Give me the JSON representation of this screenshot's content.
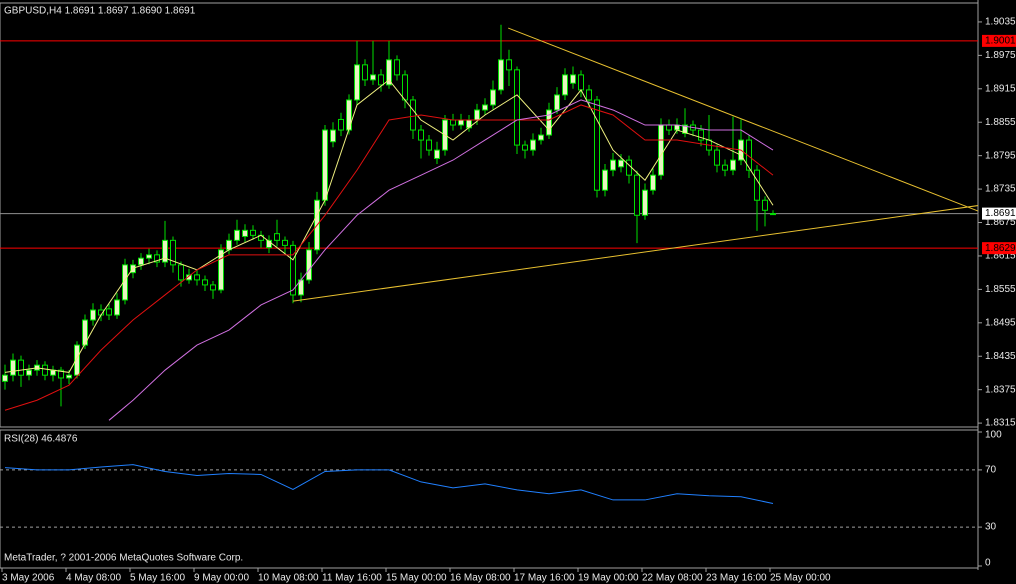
{
  "chart_data": {
    "type": "candlestick",
    "title": "GBPUSD,H4  1.8691 1.8697 1.8690 1.8691",
    "footer": "MetaTrader, ? 2001-2006 MetaQuotes Software Corp.",
    "categories": [
      "3 May 2006",
      null,
      null,
      null,
      null,
      null,
      null,
      null,
      "4 May 08:00",
      null,
      null,
      null,
      null,
      null,
      null,
      null,
      "5 May 16:00",
      null,
      null,
      null,
      null,
      null,
      null,
      null,
      "9 May 00:00",
      null,
      null,
      null,
      null,
      null,
      null,
      null,
      "10 May 08:00",
      null,
      null,
      null,
      null,
      null,
      null,
      null,
      "11 May 16:00",
      null,
      null,
      null,
      null,
      null,
      null,
      null,
      "15 May 00:00",
      null,
      null,
      null,
      null,
      null,
      null,
      null,
      "16 May 08:00",
      null,
      null,
      null,
      null,
      null,
      null,
      null,
      "17 May 16:00",
      null,
      null,
      null,
      null,
      null,
      null,
      null,
      "19 May 00:00",
      null,
      null,
      null,
      null,
      null,
      null,
      null,
      "22 May 08:00",
      null,
      null,
      null,
      null,
      null,
      null,
      null,
      "23 May 16:00",
      null,
      null,
      null,
      null,
      null,
      null,
      null,
      "25 May 00:00"
    ],
    "open": [
      1.839,
      1.8401,
      1.8428,
      1.8401,
      1.841,
      1.8419,
      1.8401,
      1.841,
      1.8396,
      1.8401,
      1.8455,
      1.85,
      1.8518,
      1.852,
      1.8509,
      1.8536,
      1.8585,
      1.8599,
      1.8611,
      1.8617,
      1.8604,
      1.8643,
      1.8599,
      1.8572,
      1.8581,
      1.8572,
      1.8563,
      1.8554,
      1.8626,
      1.8643,
      1.865,
      1.8661,
      1.8652,
      1.863,
      1.8655,
      1.8643,
      1.8634,
      1.8545,
      1.8572,
      1.8626,
      1.8715,
      1.882,
      1.886,
      1.8841,
      1.8895,
      1.8958,
      1.8931,
      1.894,
      1.8922,
      1.8967,
      1.894,
      1.8895,
      1.8841,
      1.8823,
      1.879,
      1.8805,
      1.8859,
      1.885,
      1.8845,
      1.8859,
      1.8877,
      1.8886,
      1.8913,
      1.8967,
      1.8949,
      1.8814,
      1.8805,
      1.8823,
      1.8832,
      1.8877,
      1.8904,
      1.8925,
      1.894,
      1.8913,
      1.8895,
      1.8733,
      1.8769,
      1.8775,
      1.8787,
      1.876,
      1.8688,
      1.8733,
      1.876,
      1.885,
      1.8841,
      1.8835,
      1.885,
      1.8841,
      1.8823,
      1.8805,
      1.8778,
      1.8769,
      1.8787,
      1.8823,
      1.8769,
      1.8715,
      1.8691
    ],
    "high": [
      1.842,
      1.844,
      1.8436,
      1.842,
      1.8428,
      1.8426,
      1.8418,
      1.8416,
      1.841,
      1.8462,
      1.851,
      1.853,
      1.8528,
      1.853,
      1.8548,
      1.861,
      1.8608,
      1.862,
      1.8628,
      1.8625,
      1.8678,
      1.865,
      1.8605,
      1.8592,
      1.859,
      1.858,
      1.857,
      1.8636,
      1.8655,
      1.868,
      1.8672,
      1.867,
      1.866,
      1.8652,
      1.868,
      1.865,
      1.8642,
      1.8585,
      1.864,
      1.873,
      1.885,
      1.8855,
      1.8872,
      1.8905,
      1.9001,
      1.8968,
      1.9001,
      1.895,
      1.9001,
      1.8975,
      1.8948,
      1.8902,
      1.885,
      1.8832,
      1.882,
      1.8868,
      1.887,
      1.887,
      1.8868,
      1.8888,
      1.8898,
      1.893,
      1.903,
      1.8985,
      1.8955,
      1.8822,
      1.8835,
      1.8845,
      1.889,
      1.8918,
      1.8952,
      1.8955,
      1.8948,
      1.8922,
      1.8902,
      1.878,
      1.88,
      1.8798,
      1.8795,
      1.8768,
      1.8745,
      1.8772,
      1.8862,
      1.886,
      1.8862,
      1.888,
      1.8858,
      1.885,
      1.8868,
      1.8815,
      1.8788,
      1.8865,
      1.886,
      1.8832,
      1.8778,
      1.8722,
      1.8697
    ],
    "low": [
      1.8375,
      1.839,
      1.838,
      1.8392,
      1.84,
      1.8392,
      1.839,
      1.8345,
      1.8385,
      1.8395,
      1.8448,
      1.849,
      1.8498,
      1.85,
      1.8502,
      1.8528,
      1.8575,
      1.859,
      1.86,
      1.8595,
      1.8595,
      1.8585,
      1.856,
      1.8565,
      1.8562,
      1.8552,
      1.8538,
      1.8548,
      1.8618,
      1.8635,
      1.864,
      1.8644,
      1.863,
      1.862,
      1.8632,
      1.862,
      1.853,
      1.8532,
      1.8565,
      1.8618,
      1.8705,
      1.881,
      1.883,
      1.8833,
      1.8885,
      1.892,
      1.8922,
      1.891,
      1.8915,
      1.893,
      1.888,
      1.8825,
      1.879,
      1.8795,
      1.878,
      1.8795,
      1.884,
      1.8842,
      1.8838,
      1.885,
      1.8868,
      1.8878,
      1.8905,
      1.892,
      1.8798,
      1.879,
      1.8795,
      1.8815,
      1.8825,
      1.887,
      1.8895,
      1.8915,
      1.89,
      1.888,
      1.872,
      1.8722,
      1.8758,
      1.8765,
      1.8745,
      1.8638,
      1.868,
      1.8725,
      1.8752,
      1.8832,
      1.8834,
      1.8828,
      1.883,
      1.8812,
      1.8795,
      1.8765,
      1.8758,
      1.876,
      1.8778,
      1.8755,
      1.866,
      1.8668,
      1.869
    ],
    "close": [
      1.8401,
      1.8428,
      1.8401,
      1.841,
      1.8419,
      1.8401,
      1.841,
      1.8396,
      1.8401,
      1.8455,
      1.85,
      1.8518,
      1.8509,
      1.8509,
      1.8536,
      1.8599,
      1.8599,
      1.8611,
      1.8617,
      1.8604,
      1.8643,
      1.8599,
      1.8572,
      1.8581,
      1.8572,
      1.8563,
      1.8554,
      1.8626,
      1.8643,
      1.8661,
      1.8661,
      1.8652,
      1.8643,
      1.8643,
      1.8643,
      1.8634,
      1.8545,
      1.8572,
      1.8626,
      1.8715,
      1.8841,
      1.8841,
      1.8841,
      1.8895,
      1.8958,
      1.8931,
      1.894,
      1.8922,
      1.8967,
      1.894,
      1.8895,
      1.8841,
      1.8823,
      1.8805,
      1.8805,
      1.8859,
      1.885,
      1.8859,
      1.8859,
      1.8877,
      1.8886,
      1.8913,
      1.8967,
      1.8949,
      1.8814,
      1.8805,
      1.8823,
      1.8832,
      1.8877,
      1.8904,
      1.894,
      1.894,
      1.8913,
      1.8895,
      1.8733,
      1.8769,
      1.8787,
      1.8787,
      1.876,
      1.8688,
      1.8733,
      1.876,
      1.885,
      1.8841,
      1.885,
      1.885,
      1.8841,
      1.8823,
      1.8805,
      1.8778,
      1.8769,
      1.8787,
      1.8823,
      1.8769,
      1.8715,
      1.8697,
      1.8691
    ],
    "up_color": "#e6f5c0",
    "down_color": "#000000",
    "wick_color": "#00e000",
    "ylim": [
      1.8308,
      1.9069
    ],
    "yticks": [
      1.9035,
      1.8975,
      1.8915,
      1.8855,
      1.8795,
      1.8735,
      1.8675,
      1.8615,
      1.8555,
      1.8495,
      1.8435,
      1.8375,
      1.8315
    ],
    "overlays": [
      {
        "color": "#f0f080",
        "x": [
          0,
          4,
          8,
          12,
          16,
          20,
          24,
          28,
          32,
          36,
          40,
          44,
          48,
          52,
          56,
          60,
          64,
          68,
          72,
          76,
          80,
          84,
          88,
          92,
          96
        ],
        "values": [
          1.8406,
          1.8414,
          1.8406,
          1.8509,
          1.8593,
          1.8611,
          1.859,
          1.8626,
          1.8652,
          1.8608,
          1.8715,
          1.8886,
          1.8931,
          1.8859,
          1.8823,
          1.8868,
          1.8904,
          1.8841,
          1.8913,
          1.8805,
          1.8751,
          1.8841,
          1.8823,
          1.8796,
          1.8706
        ]
      },
      {
        "color": "#e01010",
        "x": [
          0,
          4,
          8,
          12,
          16,
          20,
          24,
          28,
          32,
          36,
          40,
          44,
          48,
          52,
          56,
          60,
          64,
          68,
          72,
          76,
          80,
          84,
          88,
          92,
          96
        ],
        "values": [
          1.8338,
          1.8356,
          1.8383,
          1.8446,
          1.85,
          1.8545,
          1.859,
          1.8617,
          1.8617,
          1.8617,
          1.8688,
          1.8769,
          1.8859,
          1.8868,
          1.8859,
          1.8859,
          1.8859,
          1.8859,
          1.8886,
          1.8868,
          1.8823,
          1.8823,
          1.8814,
          1.8805,
          1.876
        ]
      },
      {
        "color": "#d070e0",
        "x": [
          13,
          16,
          20,
          24,
          28,
          32,
          36,
          40,
          44,
          48,
          52,
          56,
          60,
          64,
          68,
          72,
          76,
          80,
          84,
          88,
          92,
          96
        ],
        "values": [
          1.832,
          1.8356,
          1.841,
          1.8455,
          1.8482,
          1.8527,
          1.8554,
          1.8626,
          1.8688,
          1.8733,
          1.876,
          1.8787,
          1.8823,
          1.8859,
          1.8868,
          1.8895,
          1.8877,
          1.885,
          1.885,
          1.8841,
          1.8841,
          1.8805
        ]
      }
    ],
    "hlines": [
      {
        "value": 1.9001,
        "color": "#ff0000"
      },
      {
        "value": 1.8691,
        "color": "#909090"
      },
      {
        "value": 1.8629,
        "color": "#ff0000"
      }
    ],
    "trendlines": [
      {
        "color": "#e8c030",
        "x": [
          62.9,
          126.4
        ],
        "y": [
          1.9024,
          1.8669
        ]
      },
      {
        "color": "#e8c030",
        "x": [
          36,
          126.4
        ],
        "y": [
          1.8534,
          1.8715
        ]
      }
    ],
    "indicator": {
      "type": "line",
      "title": "RSI(28) 46.4876",
      "color": "#2080ff",
      "x": [
        0,
        4,
        8,
        12,
        16,
        20,
        24,
        28,
        32,
        36,
        40,
        44,
        48,
        52,
        56,
        60,
        64,
        68,
        72,
        76,
        80,
        84,
        88,
        92,
        96
      ],
      "values": [
        71.6,
        70,
        70,
        72,
        73.7,
        68.9,
        66.1,
        67.5,
        66.8,
        56.3,
        68.9,
        70,
        70,
        61.6,
        57.4,
        60.2,
        56,
        53.3,
        56,
        49,
        49,
        53.3,
        51.9,
        51.2,
        46.5
      ],
      "ylim": [
        0,
        100
      ],
      "yticks": [
        100,
        70,
        30,
        0
      ],
      "levels": [
        70,
        30
      ]
    }
  }
}
